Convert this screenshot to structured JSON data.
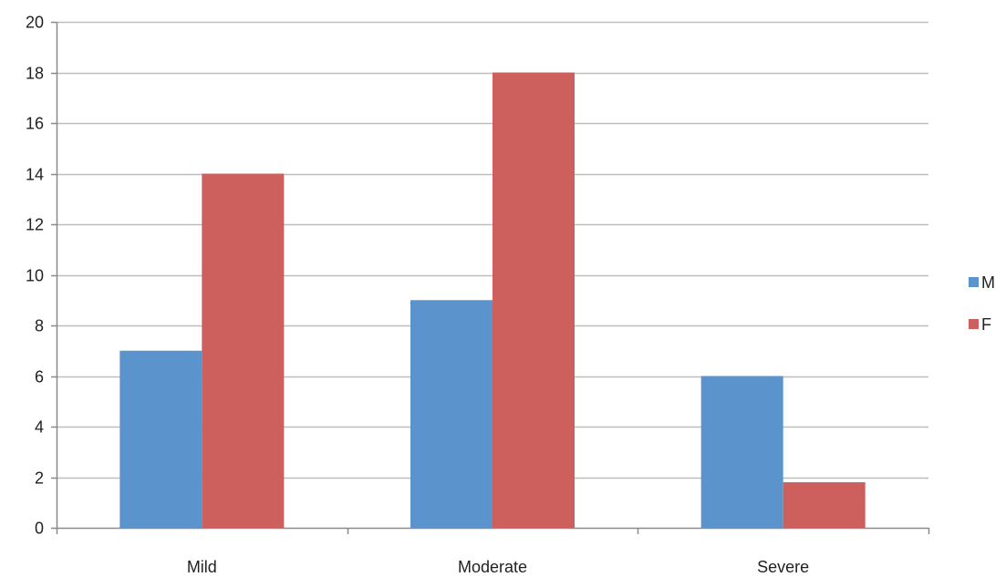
{
  "chart_data": {
    "type": "bar",
    "title": "",
    "xlabel": "",
    "ylabel": "",
    "categories": [
      "Mild",
      "Moderate",
      "Severe"
    ],
    "series": [
      {
        "name": "M",
        "values": [
          7,
          9,
          6
        ],
        "color": "#5b93cd"
      },
      {
        "name": "F",
        "values": [
          14,
          18,
          1.8
        ],
        "color": "#cd605c"
      }
    ],
    "ylim": [
      0,
      20
    ],
    "yticks": [
      0,
      2,
      4,
      6,
      8,
      10,
      12,
      14,
      16,
      18,
      20
    ],
    "grid": true,
    "legend_position": "right"
  },
  "colors": {
    "grid": "#bdbdbd",
    "axis": "#8a8a8a",
    "text": "#222222"
  }
}
